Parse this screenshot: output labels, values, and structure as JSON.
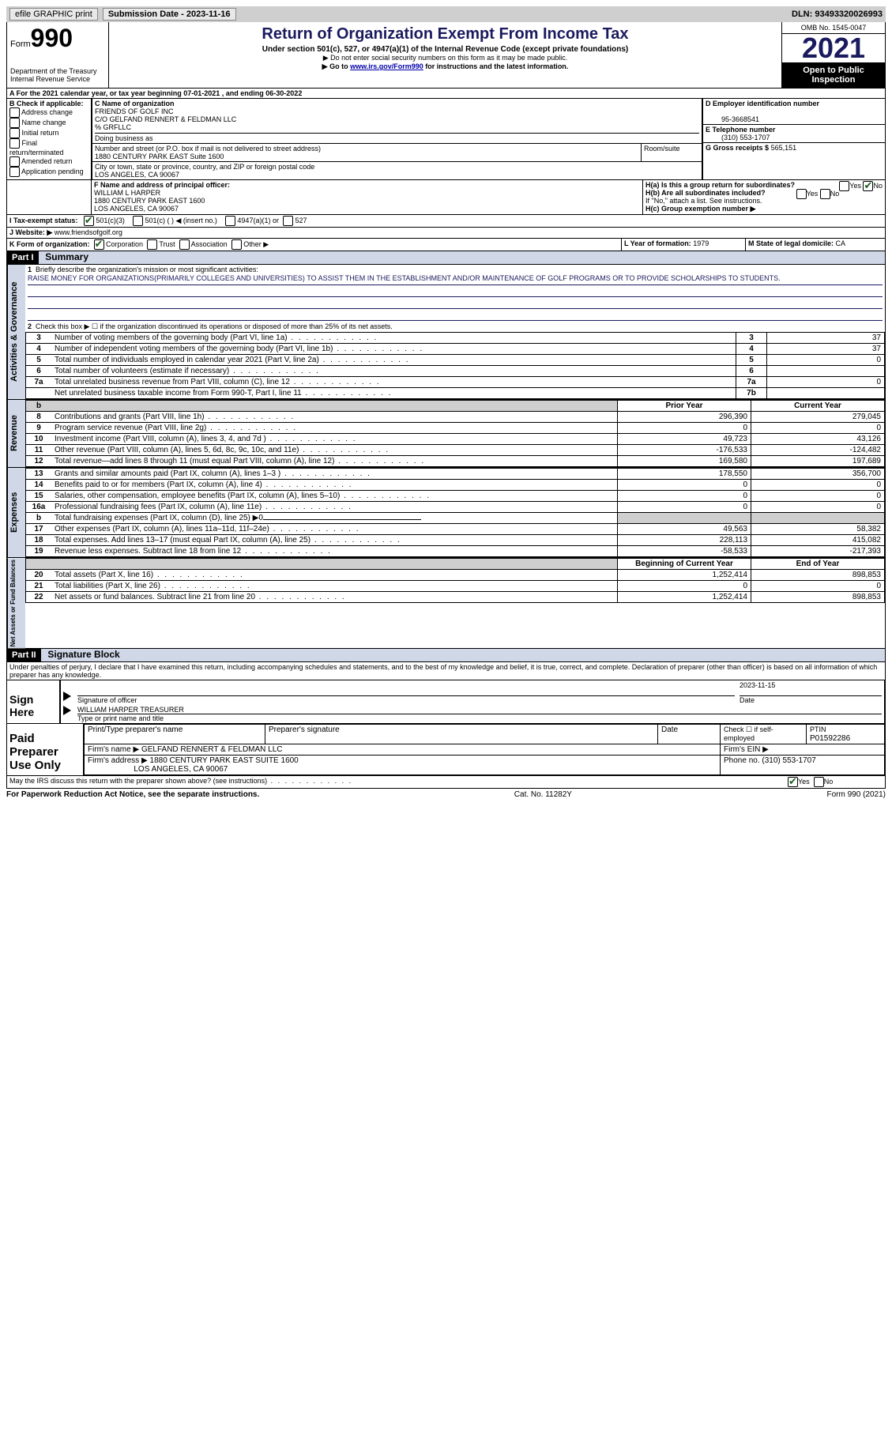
{
  "topbar": {
    "efile": "efile GRAPHIC print",
    "submission_label": "Submission Date - 2023-11-16",
    "dln_label": "DLN: 93493320026993"
  },
  "header": {
    "form_word": "Form",
    "form_no": "990",
    "dept": "Department of the Treasury",
    "irs": "Internal Revenue Service",
    "title": "Return of Organization Exempt From Income Tax",
    "sub": "Under section 501(c), 527, or 4947(a)(1) of the Internal Revenue Code (except private foundations)",
    "note1": "▶ Do not enter social security numbers on this form as it may be made public.",
    "note2_pre": "▶ Go to ",
    "note2_link": "www.irs.gov/Form990",
    "note2_post": " for instructions and the latest information.",
    "omb": "OMB No. 1545-0047",
    "year": "2021",
    "inspection": "Open to Public Inspection"
  },
  "periodA": "A For the 2021 calendar year, or tax year beginning 07-01-2021    , and ending 06-30-2022",
  "boxB": {
    "label": "B Check if applicable:",
    "items": [
      "Address change",
      "Name change",
      "Initial return",
      "Final return/terminated",
      "Amended return",
      "Application pending"
    ]
  },
  "boxC": {
    "name_label": "C Name of organization",
    "name1": "FRIENDS OF GOLF INC",
    "name2": "C/O GELFAND RENNERT & FELDMAN LLC",
    "name3": "% GRFLLC",
    "dba_label": "Doing business as",
    "addr_label": "Number and street (or P.O. box if mail is not delivered to street address)",
    "addr": "1880 CENTURY PARK EAST Suite 1600",
    "room_label": "Room/suite",
    "city_label": "City or town, state or province, country, and ZIP or foreign postal code",
    "city": "LOS ANGELES, CA  90067"
  },
  "boxD": {
    "label": "D Employer identification number",
    "value": "95-3668541"
  },
  "boxE": {
    "label": "E Telephone number",
    "value": "(310) 553-1707"
  },
  "boxG": {
    "label": "G Gross receipts $",
    "value": "565,151"
  },
  "boxF": {
    "label": "F  Name and address of principal officer:",
    "name": "WILLIAM L HARPER",
    "addr1": "1880 CENTURY PARK EAST 1600",
    "addr2": "LOS ANGELES, CA  90067"
  },
  "boxH": {
    "a": "H(a)  Is this a group return for subordinates?",
    "b": "H(b)  Are all subordinates included?",
    "b_note": "If \"No,\" attach a list. See instructions.",
    "c": "H(c)  Group exemption number ▶",
    "yes": "Yes",
    "no": "No"
  },
  "boxI": {
    "label": "I    Tax-exempt status:",
    "o1": "501(c)(3)",
    "o2": "501(c) (  ) ◀ (insert no.)",
    "o3": "4947(a)(1) or",
    "o4": "527"
  },
  "boxJ": {
    "label": "J    Website: ▶",
    "value": "www.friendsofgolf.org"
  },
  "boxK": {
    "label": "K Form of organization:",
    "o1": "Corporation",
    "o2": "Trust",
    "o3": "Association",
    "o4": "Other ▶"
  },
  "boxL": {
    "label": "L Year of formation:",
    "value": "1979"
  },
  "boxM": {
    "label": "M State of legal domicile:",
    "value": "CA"
  },
  "part1": {
    "hdr": "Part I",
    "title": "Summary",
    "l1_label": "Briefly describe the organization's mission or most significant activities:",
    "l1_text": "RAISE MONEY FOR ORGANIZATIONS(PRIMARILY COLLEGES AND UNIVERSITIES) TO ASSIST THEM IN THE ESTABLISHMENT AND/OR MAINTENANCE OF GOLF PROGRAMS OR TO PROVIDE SCHOLARSHIPS TO STUDENTS.",
    "l2": "Check this box ▶ ☐  if the organization discontinued its operations or disposed of more than 25% of its net assets.",
    "tab_activities": "Activities & Governance",
    "tab_revenue": "Revenue",
    "tab_expenses": "Expenses",
    "tab_net": "Net Assets or Fund Balances",
    "lines_ag": [
      {
        "n": "3",
        "d": "Number of voting members of the governing body (Part VI, line 1a)",
        "box": "3",
        "cy": "37"
      },
      {
        "n": "4",
        "d": "Number of independent voting members of the governing body (Part VI, line 1b)",
        "box": "4",
        "cy": "37"
      },
      {
        "n": "5",
        "d": "Total number of individuals employed in calendar year 2021 (Part V, line 2a)",
        "box": "5",
        "cy": "0"
      },
      {
        "n": "6",
        "d": "Total number of volunteers (estimate if necessary)",
        "box": "6",
        "cy": ""
      },
      {
        "n": "7a",
        "d": "Total unrelated business revenue from Part VIII, column (C), line 12",
        "box": "7a",
        "cy": "0"
      },
      {
        "n": "",
        "d": "Net unrelated business taxable income from Form 990-T, Part I, line 11",
        "box": "7b",
        "cy": ""
      }
    ],
    "col_prior": "Prior Year",
    "col_current": "Current Year",
    "col_begin": "Beginning of Current Year",
    "col_end": "End of Year",
    "lines_rev": [
      {
        "n": "8",
        "d": "Contributions and grants (Part VIII, line 1h)",
        "py": "296,390",
        "cy": "279,045"
      },
      {
        "n": "9",
        "d": "Program service revenue (Part VIII, line 2g)",
        "py": "0",
        "cy": "0"
      },
      {
        "n": "10",
        "d": "Investment income (Part VIII, column (A), lines 3, 4, and 7d )",
        "py": "49,723",
        "cy": "43,126"
      },
      {
        "n": "11",
        "d": "Other revenue (Part VIII, column (A), lines 5, 6d, 8c, 9c, 10c, and 11e)",
        "py": "-176,533",
        "cy": "-124,482"
      },
      {
        "n": "12",
        "d": "Total revenue—add lines 8 through 11 (must equal Part VIII, column (A), line 12)",
        "py": "169,580",
        "cy": "197,689"
      }
    ],
    "lines_exp": [
      {
        "n": "13",
        "d": "Grants and similar amounts paid (Part IX, column (A), lines 1–3 )",
        "py": "178,550",
        "cy": "356,700"
      },
      {
        "n": "14",
        "d": "Benefits paid to or for members (Part IX, column (A), line 4)",
        "py": "0",
        "cy": "0"
      },
      {
        "n": "15",
        "d": "Salaries, other compensation, employee benefits (Part IX, column (A), lines 5–10)",
        "py": "0",
        "cy": "0"
      },
      {
        "n": "16a",
        "d": "Professional fundraising fees (Part IX, column (A), line 11e)",
        "py": "0",
        "cy": "0"
      },
      {
        "n": "b",
        "d": "Total fundraising expenses (Part IX, column (D), line 25) ▶0",
        "py": "",
        "cy": "",
        "shade": true
      },
      {
        "n": "17",
        "d": "Other expenses (Part IX, column (A), lines 11a–11d, 11f–24e)",
        "py": "49,563",
        "cy": "58,382"
      },
      {
        "n": "18",
        "d": "Total expenses. Add lines 13–17 (must equal Part IX, column (A), line 25)",
        "py": "228,113",
        "cy": "415,082"
      },
      {
        "n": "19",
        "d": "Revenue less expenses. Subtract line 18 from line 12",
        "py": "-58,533",
        "cy": "-217,393"
      }
    ],
    "lines_net": [
      {
        "n": "20",
        "d": "Total assets (Part X, line 16)",
        "py": "1,252,414",
        "cy": "898,853"
      },
      {
        "n": "21",
        "d": "Total liabilities (Part X, line 26)",
        "py": "0",
        "cy": "0"
      },
      {
        "n": "22",
        "d": "Net assets or fund balances. Subtract line 21 from line 20",
        "py": "1,252,414",
        "cy": "898,853"
      }
    ]
  },
  "part2": {
    "hdr": "Part II",
    "title": "Signature Block",
    "decl": "Under penalties of perjury, I declare that I have examined this return, including accompanying schedules and statements, and to the best of my knowledge and belief, it is true, correct, and complete. Declaration of preparer (other than officer) is based on all information of which preparer has any knowledge.",
    "sign_here": "Sign Here",
    "sig_officer": "Signature of officer",
    "sig_date": "2023-11-15",
    "date_label": "Date",
    "officer_name": "WILLIAM HARPER  TREASURER",
    "type_name": "Type or print name and title",
    "paid": "Paid Preparer Use Only",
    "prep_name_label": "Print/Type preparer's name",
    "prep_sig_label": "Preparer's signature",
    "check_if": "Check ☐ if self-employed",
    "ptin_label": "PTIN",
    "ptin": "P01592286",
    "firm_name_label": "Firm's name    ▶",
    "firm_name": "GELFAND RENNERT & FELDMAN LLC",
    "firm_ein_label": "Firm's EIN ▶",
    "firm_addr_label": "Firm's address ▶",
    "firm_addr1": "1880 CENTURY PARK EAST SUITE 1600",
    "firm_addr2": "LOS ANGELES, CA  90067",
    "phone_label": "Phone no.",
    "phone": "(310) 553-1707",
    "discuss": "May the IRS discuss this return with the preparer shown above? (see instructions)",
    "yes": "Yes",
    "no": "No"
  },
  "footer": {
    "left": "For Paperwork Reduction Act Notice, see the separate instructions.",
    "mid": "Cat. No. 11282Y",
    "right": "Form 990 (2021)"
  }
}
